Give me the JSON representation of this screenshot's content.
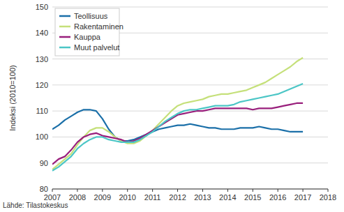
{
  "chart_data": {
    "type": "line",
    "y_label": "Indeksi (2010=100)",
    "annotations": [
      "Lähde: Tilastokeskus"
    ],
    "x": [
      2007,
      2007.25,
      2007.5,
      2007.75,
      2008,
      2008.25,
      2008.5,
      2008.75,
      2009,
      2009.25,
      2009.5,
      2009.75,
      2010,
      2010.25,
      2010.5,
      2010.75,
      2011,
      2011.25,
      2011.5,
      2011.75,
      2012,
      2012.25,
      2012.5,
      2012.75,
      2013,
      2013.25,
      2013.5,
      2013.75,
      2014,
      2014.25,
      2014.5,
      2014.75,
      2015,
      2015.25,
      2015.5,
      2015.75,
      2016,
      2016.25,
      2016.5,
      2016.75,
      2017
    ],
    "series": [
      {
        "name": "Teollisuus",
        "color": "#1a6fa8",
        "values": [
          103,
          104.5,
          106.5,
          108,
          109.5,
          110.5,
          110.5,
          110,
          107,
          103,
          100,
          98.5,
          98.5,
          99,
          100,
          101,
          102,
          103,
          103.5,
          104,
          104.5,
          104.5,
          105,
          104.5,
          104,
          103.5,
          103.5,
          103,
          103,
          103,
          103.5,
          103.5,
          103.5,
          104,
          103.5,
          103,
          103,
          102.5,
          102,
          102,
          102
        ]
      },
      {
        "name": "Rakentaminen",
        "color": "#c5e07a",
        "values": [
          87.5,
          89.5,
          91.5,
          93.5,
          97,
          100,
          102.5,
          103.5,
          103.5,
          102,
          100,
          98.5,
          97.5,
          97.5,
          98.5,
          100.5,
          102.5,
          105,
          107.5,
          110,
          112,
          113,
          113.5,
          114,
          114.5,
          115.5,
          116,
          116.5,
          116.5,
          117,
          117.5,
          118,
          119,
          120,
          121,
          122.5,
          124,
          125.5,
          127,
          129,
          130.5
        ]
      },
      {
        "name": "Kauppa",
        "color": "#991f7c",
        "values": [
          89.5,
          91.5,
          92.5,
          95,
          98,
          100,
          101,
          101.5,
          100.5,
          100,
          99.5,
          99,
          98,
          98.5,
          99.5,
          101,
          102.5,
          104,
          105.5,
          107,
          108.5,
          109,
          109.5,
          110,
          110,
          110.5,
          111,
          111,
          111,
          111,
          111,
          111,
          110.5,
          111,
          111,
          111,
          111.5,
          112,
          112.5,
          113,
          113
        ]
      },
      {
        "name": "Muut palvelut",
        "color": "#4cc6c6",
        "values": [
          87,
          88.5,
          90.5,
          92.5,
          95.5,
          97.5,
          99,
          100,
          100,
          99,
          98.5,
          98,
          98,
          98,
          99,
          100.5,
          102,
          104,
          106,
          107.5,
          109,
          110,
          110.5,
          110.5,
          111,
          111.5,
          112,
          112,
          112,
          112.5,
          113.5,
          114,
          114.5,
          115,
          115.5,
          116,
          116.5,
          117.5,
          118.5,
          119.5,
          120.5
        ]
      }
    ],
    "xlim": [
      2007,
      2018
    ],
    "xticks": [
      2007,
      2008,
      2009,
      2010,
      2011,
      2012,
      2013,
      2014,
      2015,
      2016,
      2017,
      2018
    ],
    "ylim": [
      80,
      150
    ],
    "yticks": [
      80,
      90,
      100,
      110,
      120,
      130,
      140,
      150
    ],
    "grid": true,
    "legend": "top-left"
  }
}
